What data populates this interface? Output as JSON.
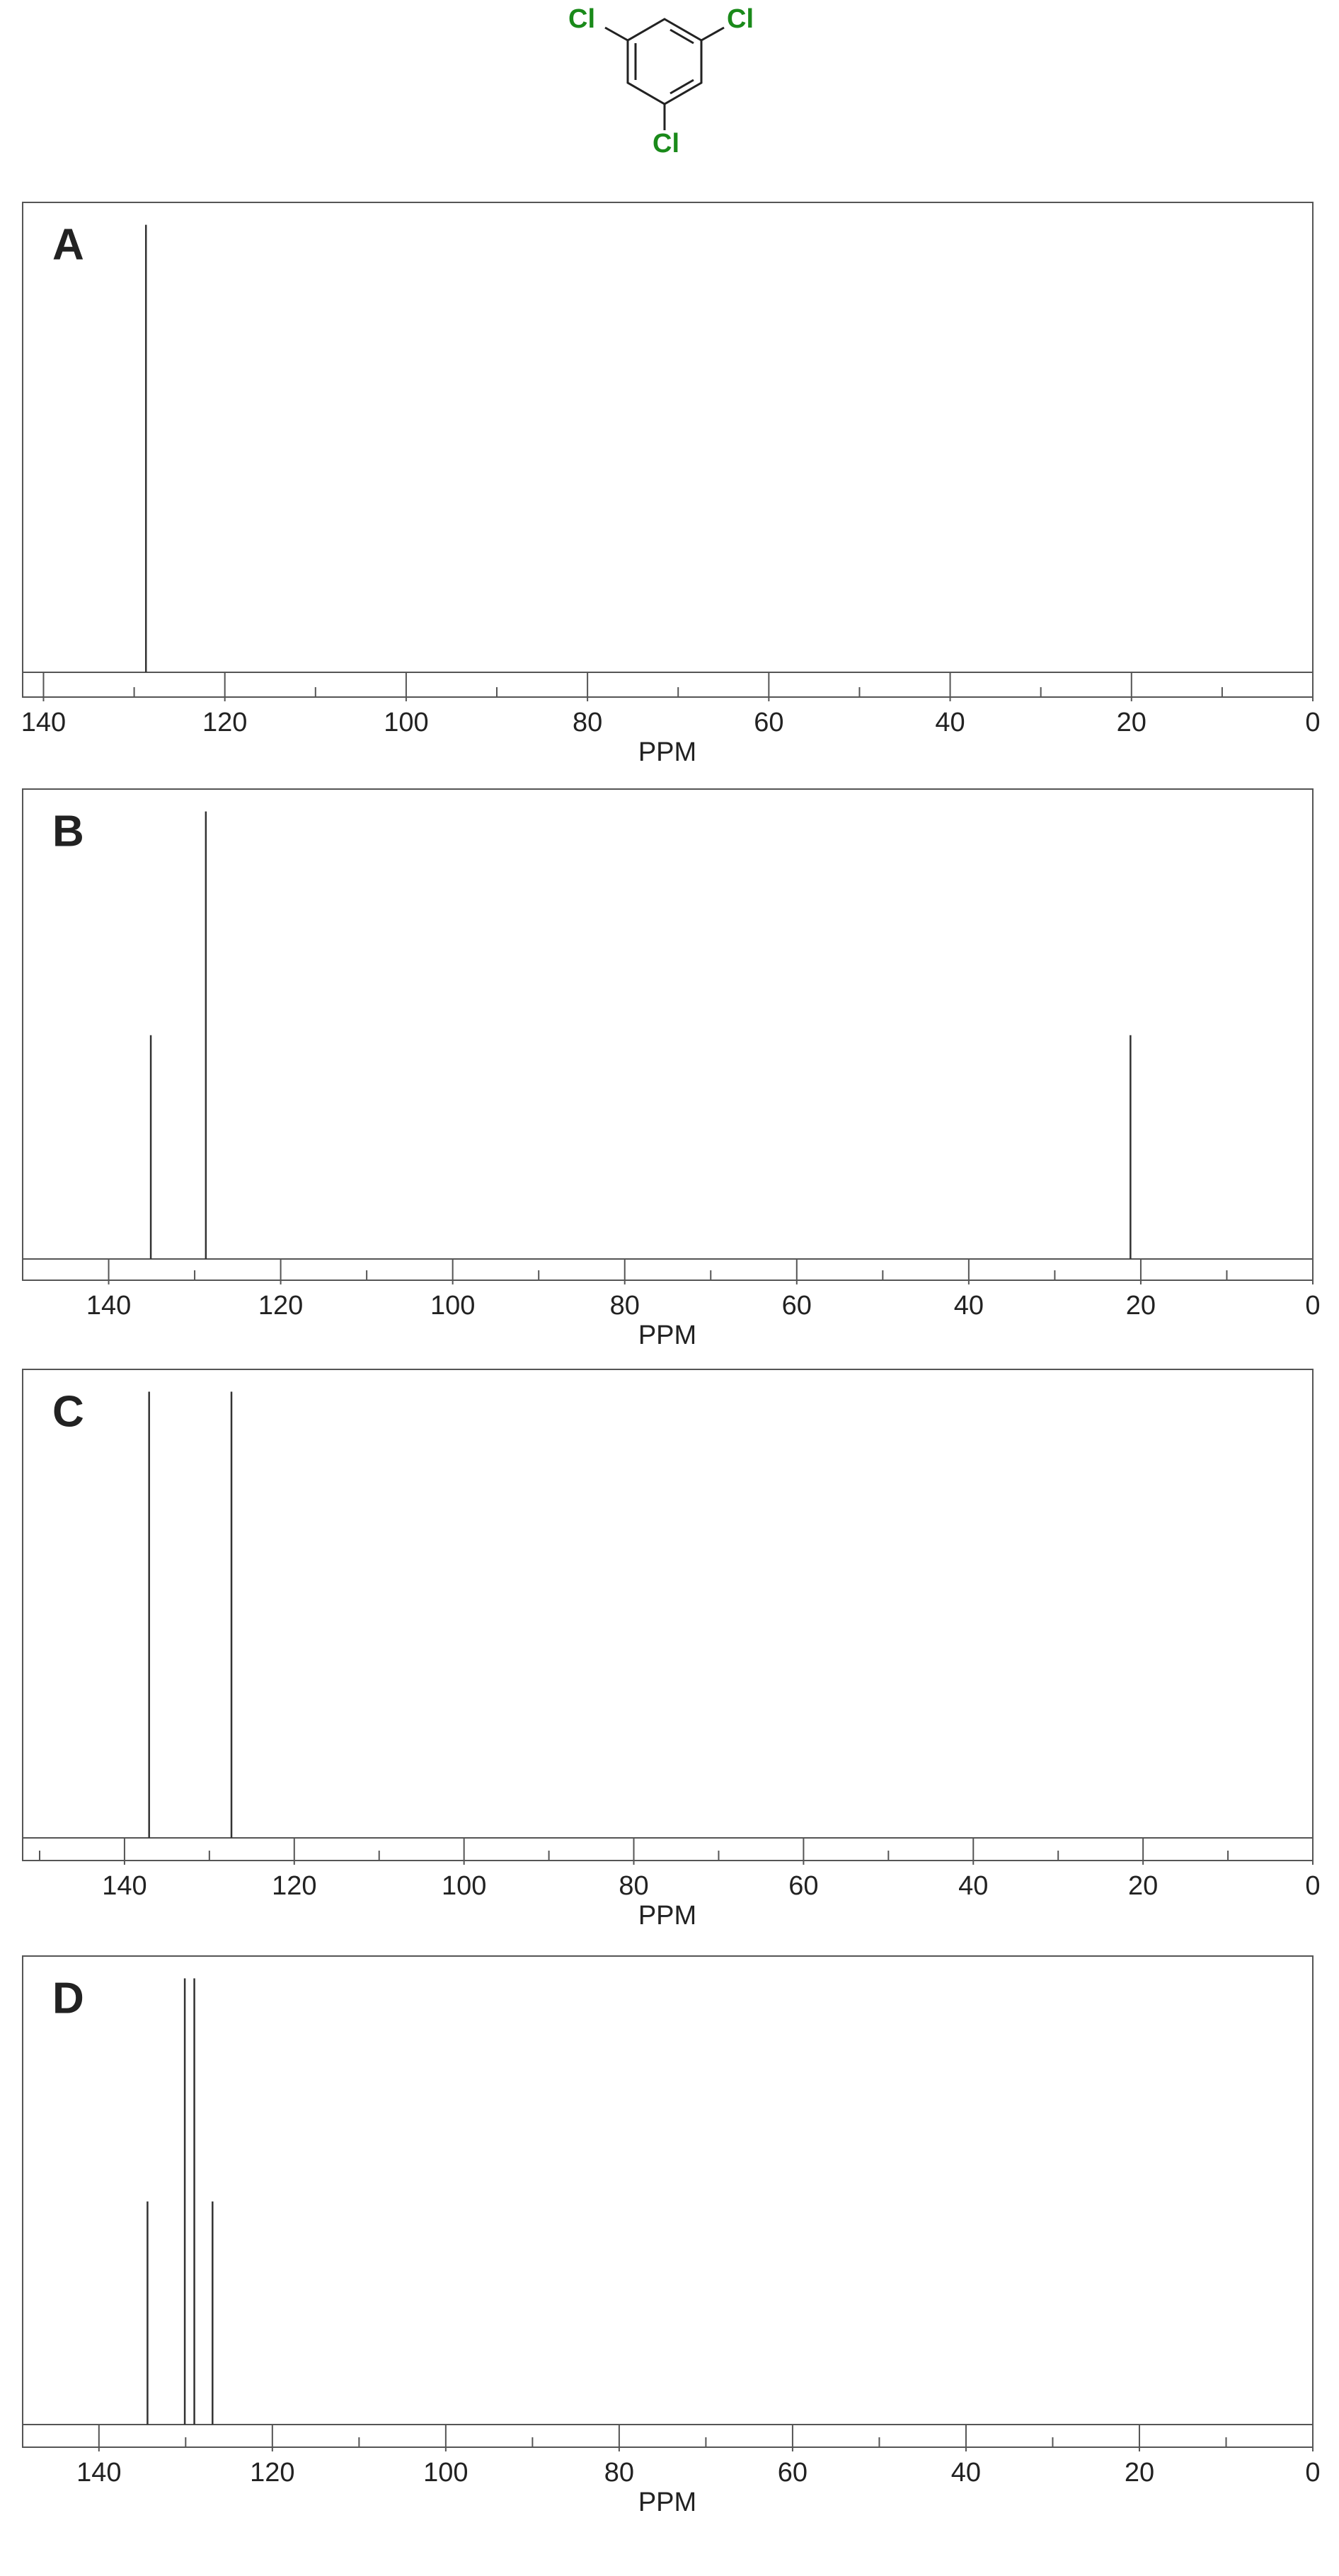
{
  "molecule": {
    "labels": [
      "Cl",
      "Cl",
      "Cl"
    ]
  },
  "chart_data": [
    {
      "type": "stem",
      "label": "A",
      "xlabel": "PPM",
      "x": [
        128.7
      ],
      "values": [
        1
      ],
      "color": "#333333",
      "xlim": [
        142.3,
        0
      ],
      "ylim": [
        0,
        1.05
      ],
      "xticks": [
        140,
        120,
        100,
        80,
        60,
        40,
        20,
        0
      ],
      "minor_xticks": [
        130,
        110,
        90,
        70,
        50,
        30,
        10
      ]
    },
    {
      "type": "stem",
      "label": "B",
      "xlabel": "PPM",
      "x": [
        135.1,
        128.7,
        21.2
      ],
      "values": [
        0.5,
        1,
        0.5
      ],
      "color": "#333333",
      "xlim": [
        150,
        0
      ],
      "ylim": [
        0,
        1.05
      ],
      "xticks": [
        140,
        120,
        100,
        80,
        60,
        40,
        20,
        0
      ],
      "minor_xticks": [
        130,
        110,
        90,
        70,
        50,
        30,
        10
      ]
    },
    {
      "type": "stem",
      "label": "C",
      "xlabel": "PPM",
      "x": [
        137.1,
        127.4
      ],
      "values": [
        1,
        1
      ],
      "color": "#333333",
      "xlim": [
        152,
        0
      ],
      "ylim": [
        0,
        1.05
      ],
      "xticks": [
        140,
        120,
        100,
        80,
        60,
        40,
        20,
        0
      ],
      "minor_xticks": [
        150,
        130,
        110,
        90,
        70,
        50,
        30,
        10
      ]
    },
    {
      "type": "stem",
      "label": "D",
      "xlabel": "PPM",
      "x": [
        134.4,
        130.1,
        129.0,
        126.9
      ],
      "values": [
        0.5,
        1,
        1,
        0.5
      ],
      "color": "#333333",
      "xlim": [
        148.8,
        0
      ],
      "ylim": [
        0,
        1.05
      ],
      "xticks": [
        140,
        120,
        100,
        80,
        60,
        40,
        20,
        0
      ],
      "minor_xticks": [
        130,
        110,
        90,
        70,
        50,
        30,
        10
      ]
    }
  ]
}
